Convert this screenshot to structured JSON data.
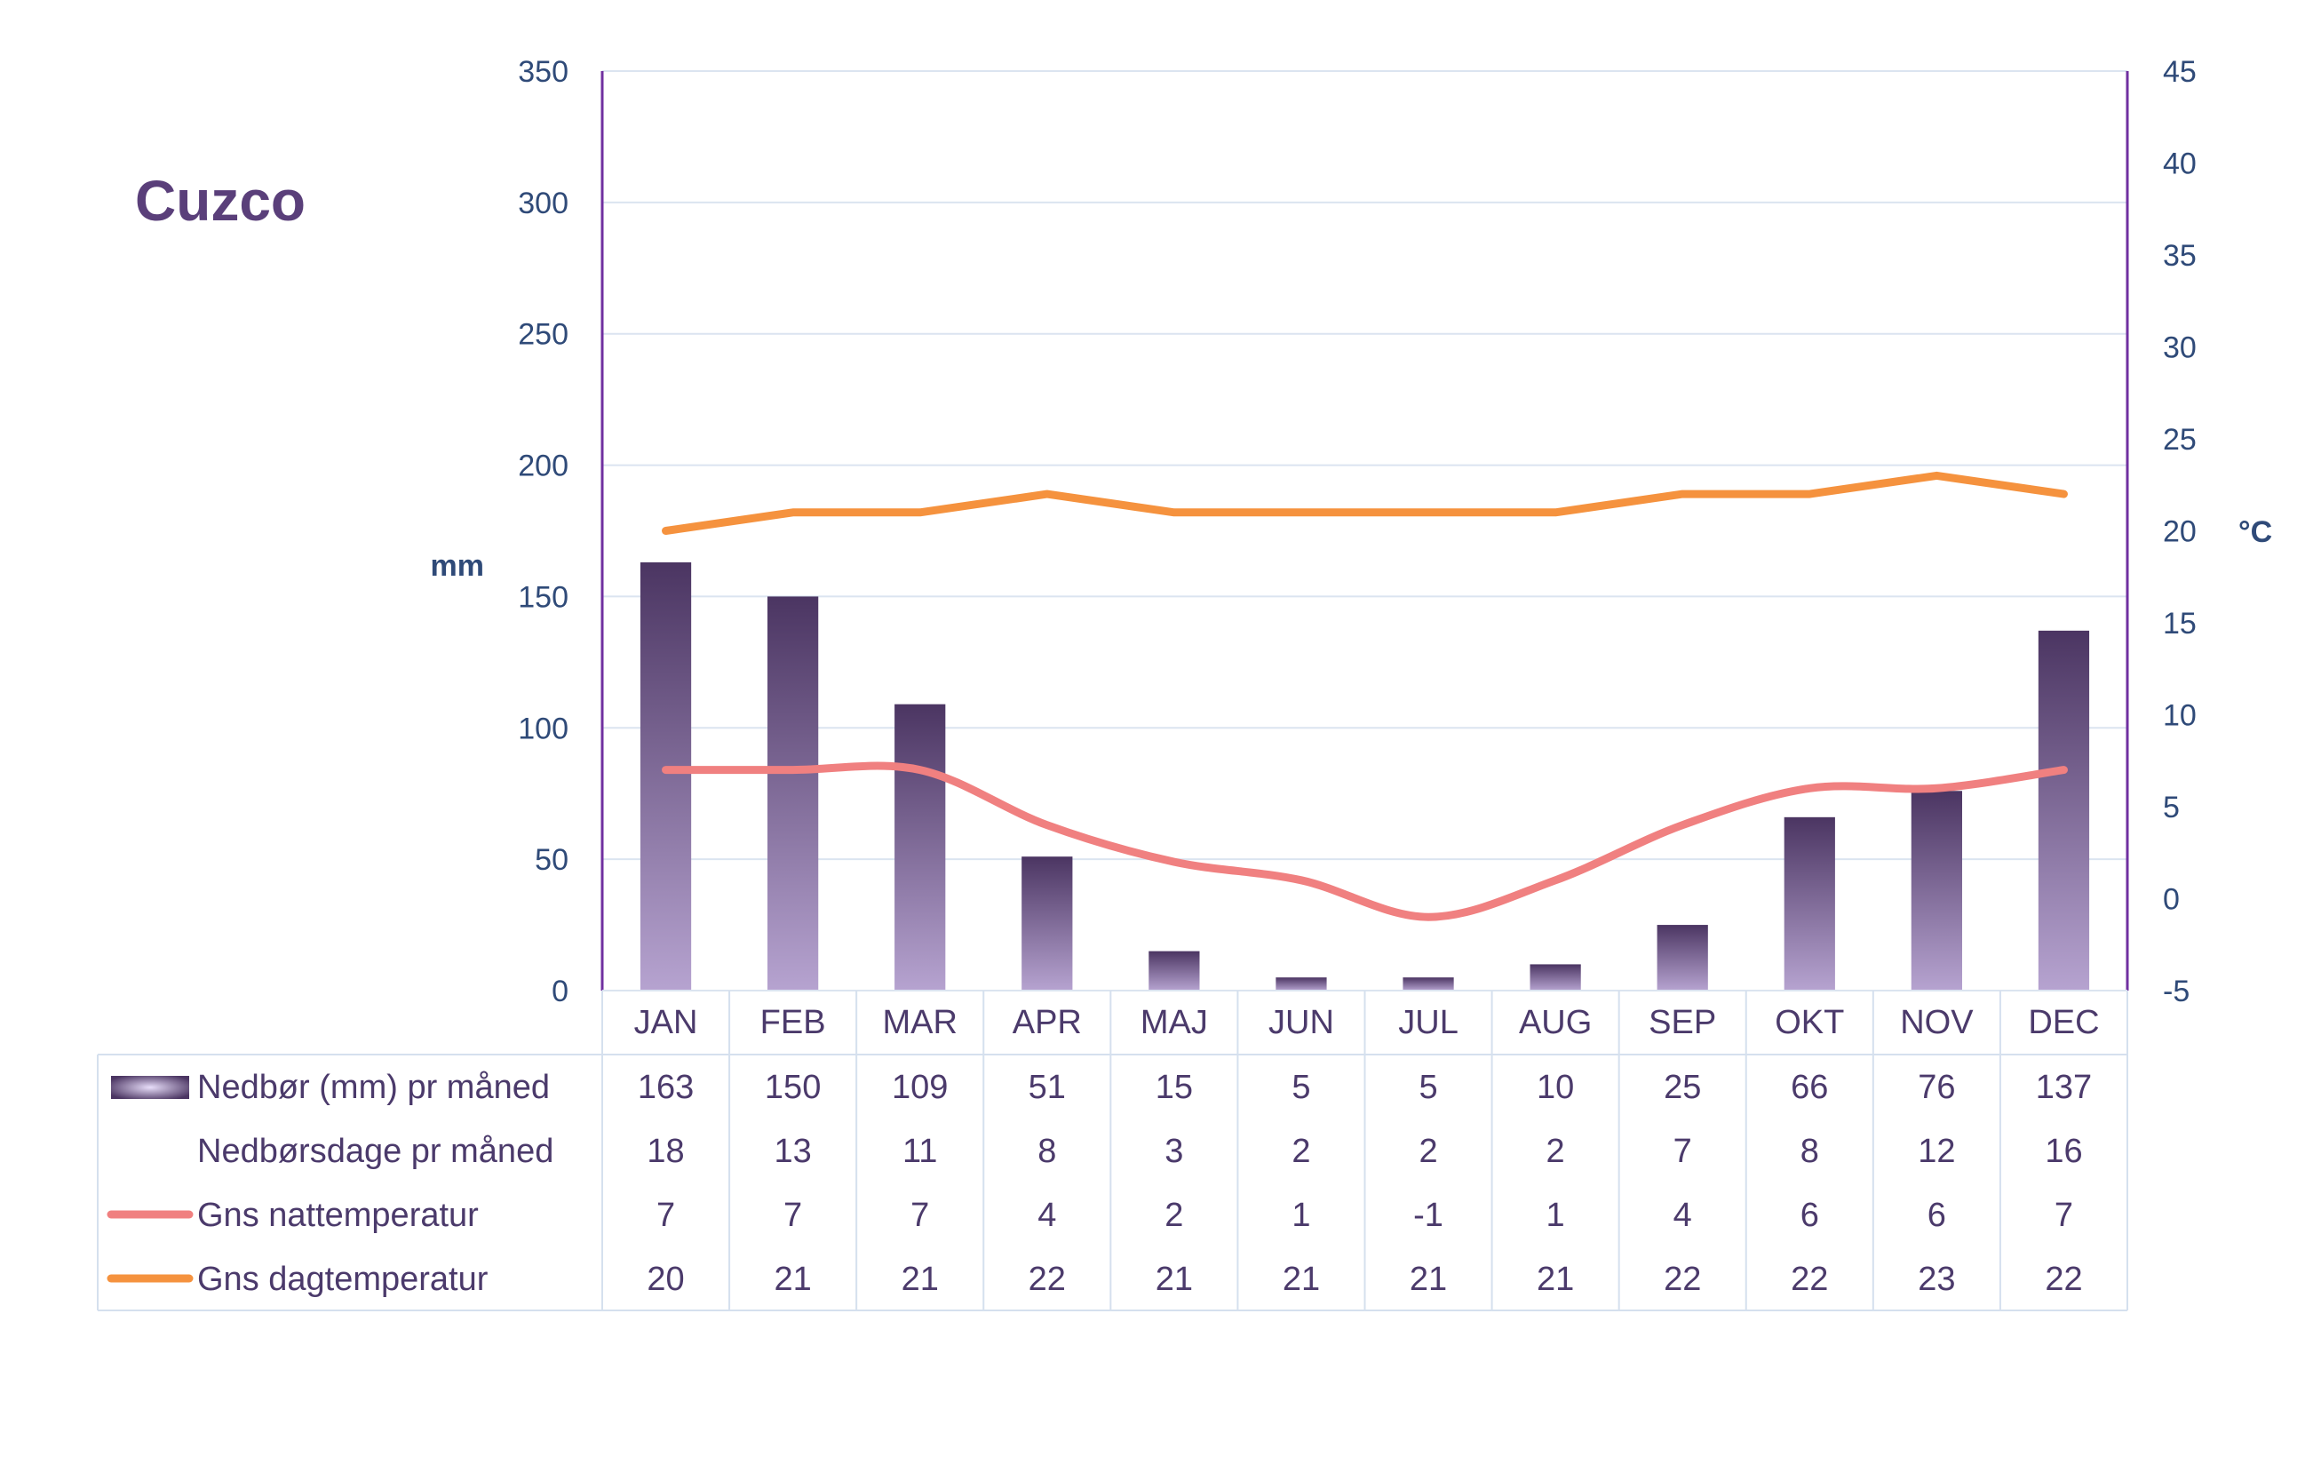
{
  "chart_data": {
    "type": "bar",
    "title": "Cuzco",
    "categories": [
      "JAN",
      "FEB",
      "MAR",
      "APR",
      "MAJ",
      "JUN",
      "JUL",
      "AUG",
      "SEP",
      "OKT",
      "NOV",
      "DEC"
    ],
    "y_left": {
      "label": "mm",
      "range": [
        0,
        350
      ],
      "ticks": [
        0,
        50,
        100,
        150,
        200,
        250,
        300,
        350
      ]
    },
    "y_right": {
      "label": "°C",
      "range": [
        -5,
        45
      ],
      "ticks": [
        -5,
        0,
        5,
        10,
        15,
        20,
        25,
        30,
        35,
        40,
        45
      ]
    },
    "grid": true,
    "series": [
      {
        "name": "Nedbør (mm) pr måned",
        "type": "bar",
        "axis": "left",
        "color": "#5a4278",
        "values": [
          163,
          150,
          109,
          51,
          15,
          5,
          5,
          10,
          25,
          66,
          76,
          137
        ]
      },
      {
        "name": "Nedbørsdage pr måned",
        "type": "table",
        "axis": "none",
        "values": [
          18,
          13,
          11,
          8,
          3,
          2,
          2,
          2,
          7,
          8,
          12,
          16
        ]
      },
      {
        "name": "Gns nattemperatur",
        "type": "line",
        "axis": "right",
        "color": "#f08080",
        "values": [
          7,
          7,
          7,
          4,
          2,
          1,
          -1,
          1,
          4,
          6,
          6,
          7
        ]
      },
      {
        "name": "Gns dagtemperatur",
        "type": "line",
        "axis": "right",
        "color": "#f5923e",
        "values": [
          20,
          21,
          21,
          22,
          21,
          21,
          21,
          21,
          22,
          22,
          23,
          22
        ]
      }
    ],
    "colors": {
      "axis_text": "#2f4a78",
      "title": "#5a3f7a",
      "legend_text": "#4b3a6b",
      "axis_line": "#7030a0",
      "grid": "#dbe4f0",
      "table_border": "#d5e0ee",
      "bar_top": "#4b3562",
      "bar_bottom": "#b6a3d0"
    }
  }
}
